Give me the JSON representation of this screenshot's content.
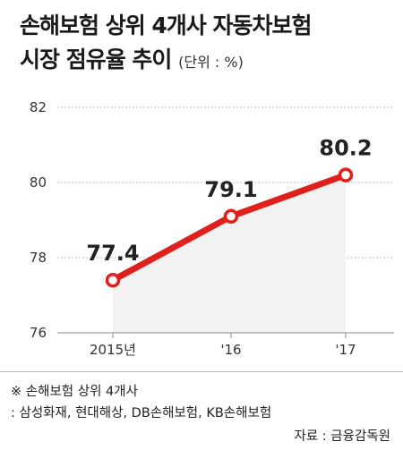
{
  "chart_data": {
    "type": "line",
    "title_line1": "손해보험 상위 4개사 자동차보험",
    "title_line2": "시장 점유율 추이",
    "unit": "(단위 : %)",
    "categories": [
      "2015년",
      "'16",
      "'17"
    ],
    "values": [
      77.4,
      79.1,
      80.2
    ],
    "value_labels": [
      "77.4",
      "79.1",
      "80.2"
    ],
    "ylim": [
      76,
      82
    ],
    "yticks": [
      "76",
      "78",
      "80",
      "82"
    ],
    "grid": true,
    "line_color": "#e0201c",
    "area_color": "#f2f2f2"
  },
  "footnote": {
    "line1": "※ 손해보험 상위 4개사",
    "line2": "  : 삼성화재, 현대해상, DB손해보험, KB손해보험"
  },
  "source": "자료 : 금융감독원"
}
